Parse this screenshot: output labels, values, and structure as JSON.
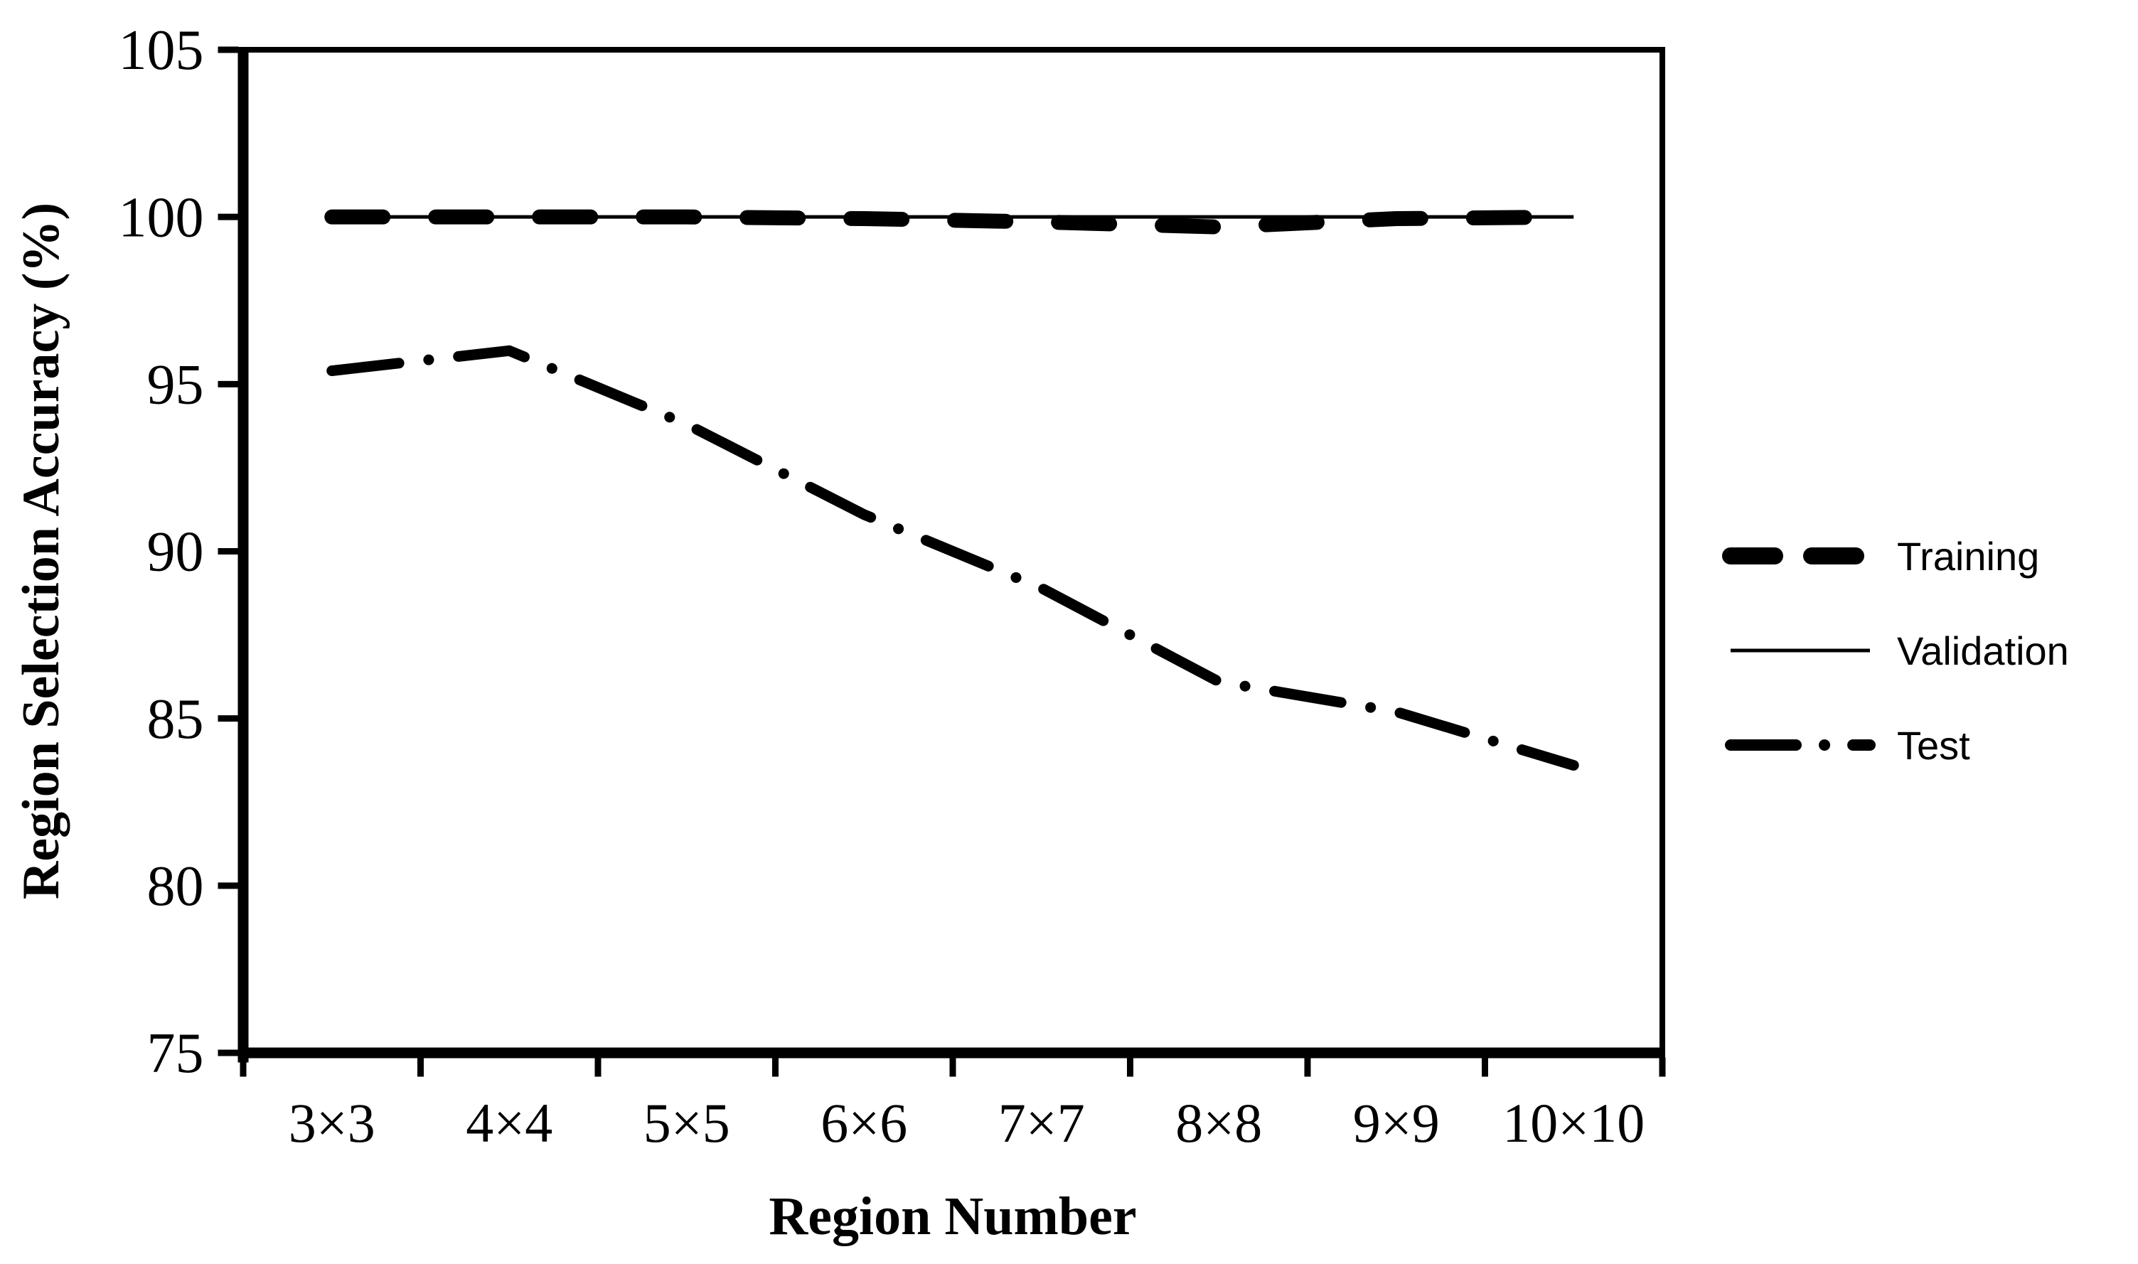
{
  "figure": {
    "background": "#ffffff",
    "foreground": "#000000"
  },
  "chart_data": {
    "type": "line",
    "title": "",
    "xlabel": "Region Number",
    "ylabel": "Region Selection Accuracy (%)",
    "categories": [
      "3×3",
      "4×4",
      "5×5",
      "6×6",
      "7×7",
      "8×8",
      "9×9",
      "10×10"
    ],
    "y_ticks": [
      75,
      80,
      85,
      90,
      95,
      100,
      105
    ],
    "ylim": [
      75,
      105
    ],
    "grid": false,
    "legend_position": "right-center",
    "series": [
      {
        "name": "Training",
        "style": "thick-dashed",
        "values": [
          100,
          100,
          100,
          99.95,
          99.85,
          99.7,
          99.95,
          100
        ]
      },
      {
        "name": "Validation",
        "style": "thin-solid",
        "values": [
          100,
          100,
          100,
          100,
          100,
          100,
          100,
          100
        ]
      },
      {
        "name": "Test",
        "style": "dash-dot",
        "values": [
          95.4,
          96.0,
          93.8,
          91.1,
          88.9,
          86.1,
          85.2,
          83.6
        ]
      }
    ]
  }
}
